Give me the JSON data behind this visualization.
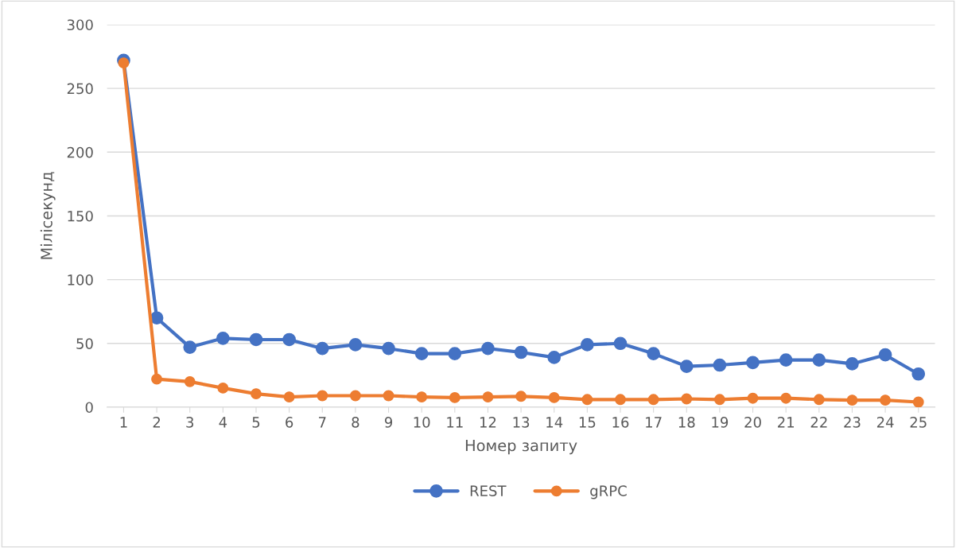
{
  "chart_data": {
    "type": "line",
    "xlabel": "Номер запиту",
    "ylabel": "Мілісекунд",
    "categories": [
      "1",
      "2",
      "3",
      "4",
      "5",
      "6",
      "7",
      "8",
      "9",
      "10",
      "11",
      "12",
      "13",
      "14",
      "15",
      "16",
      "17",
      "18",
      "19",
      "20",
      "21",
      "22",
      "23",
      "24",
      "25"
    ],
    "series": [
      {
        "name": "REST",
        "color": "#4472c4",
        "values": [
          272,
          70,
          47,
          54,
          53,
          53,
          46,
          49,
          46,
          42,
          42,
          46,
          43,
          39,
          49,
          50,
          42,
          32,
          33,
          35,
          37,
          37,
          34,
          41,
          26
        ]
      },
      {
        "name": "gRPC",
        "color": "#ed7d31",
        "values": [
          270,
          22,
          20,
          15,
          10.5,
          8,
          9,
          9,
          9,
          8,
          7.5,
          8,
          8.5,
          7.5,
          6,
          6,
          6,
          6.5,
          6,
          7,
          7,
          6,
          5.5,
          5.5,
          4
        ]
      }
    ],
    "ylim": [
      0,
      300
    ],
    "yticks": [
      0,
      50,
      100,
      150,
      200,
      250,
      300
    ],
    "grid": "y",
    "legend": "bottom",
    "marker": "circle",
    "line_style": "solid"
  }
}
